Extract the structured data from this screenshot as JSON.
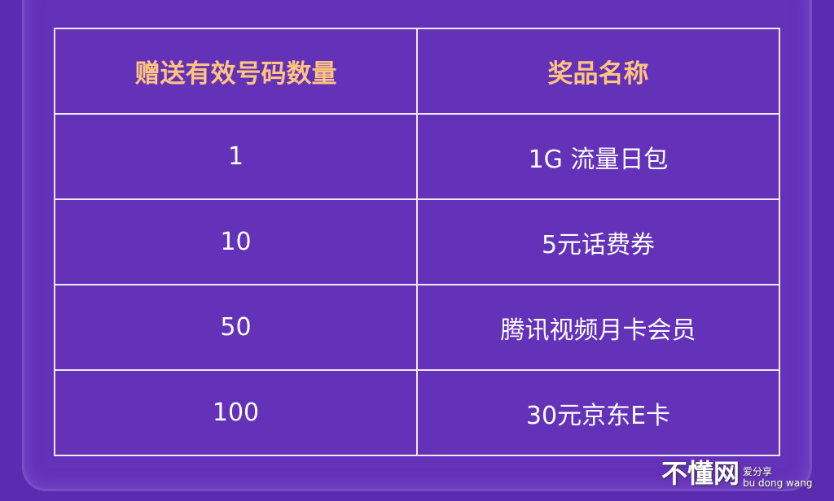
{
  "table": {
    "headers": [
      "赠送有效号码数量",
      "奖品名称"
    ],
    "rows": [
      [
        "1",
        "1G 流量日包"
      ],
      [
        "10",
        "5元话费券"
      ],
      [
        "50",
        "腾讯视频月卡会员"
      ],
      [
        "100",
        "30元京东E卡"
      ]
    ]
  },
  "watermark": {
    "main": "不懂网",
    "sub": "爱分享",
    "pinyin": "bu dong wang"
  },
  "colors": {
    "background": "#5b2cb0",
    "header_text": "#ffc47f",
    "border": "#f1e9ff"
  }
}
